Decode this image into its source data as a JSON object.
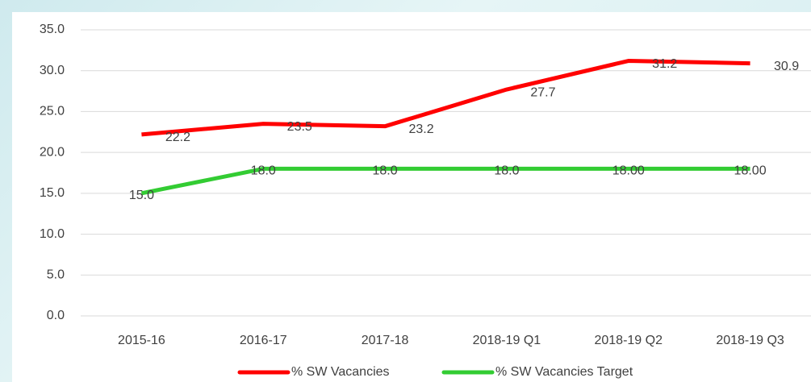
{
  "chart_data": {
    "type": "line",
    "categories": [
      "2015-16",
      "2016-17",
      "2017-18",
      "2018-19 Q1",
      "2018-19 Q2",
      "2018-19 Q3"
    ],
    "series": [
      {
        "name": "% SW Vacancies",
        "color": "#ff0000",
        "values": [
          22.2,
          23.5,
          23.2,
          27.7,
          31.2,
          30.9
        ]
      },
      {
        "name": "% SW Vacancies Target",
        "color": "#33cc33",
        "values": [
          15,
          18,
          18,
          18,
          18,
          18
        ],
        "value_labels": [
          "15.0",
          "18.0",
          "18.0",
          "18.0",
          "18.00",
          "18.00"
        ]
      }
    ],
    "ylim": [
      0,
      35
    ],
    "yticks": [
      {
        "value": 0,
        "label": "0.0"
      },
      {
        "value": 5,
        "label": "5.0"
      },
      {
        "value": 10,
        "label": "10.0"
      },
      {
        "value": 15,
        "label": "15.0"
      },
      {
        "value": 20,
        "label": "20.0"
      },
      {
        "value": 25,
        "label": "25.0"
      },
      {
        "value": 30,
        "label": "30.0"
      },
      {
        "value": 35,
        "label": "35.0"
      }
    ],
    "grid": true,
    "legend": "bottom"
  }
}
